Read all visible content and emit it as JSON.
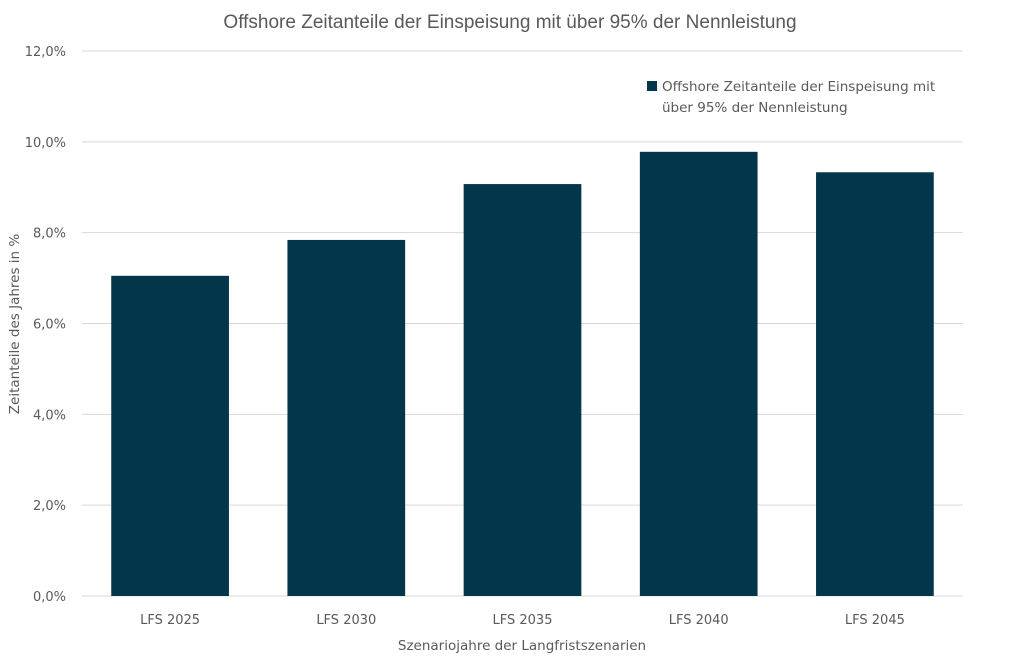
{
  "chart_data": {
    "type": "bar",
    "title": "Offshore Zeitanteile der Einspeisung mit über 95% der Nennleistung",
    "xlabel": "Szenariojahre der Langfristszenarien",
    "ylabel": "Zeitanteile des Jahres in %",
    "categories": [
      "LFS 2025",
      "LFS 2030",
      "LFS 2035",
      "LFS 2040",
      "LFS 2045"
    ],
    "series": [
      {
        "name": "Offshore Zeitanteile der Einspeisung mit über 95% der Nennleistung",
        "legend_lines": [
          "Offshore Zeitanteile der Einspeisung mit",
          "über 95% der Nennleistung"
        ],
        "values": [
          7.05,
          7.84,
          9.07,
          9.78,
          9.33
        ],
        "color": "#03364b"
      }
    ],
    "ylim": [
      0,
      12
    ],
    "yticks": [
      0,
      2,
      4,
      6,
      8,
      10,
      12
    ],
    "ytick_labels": [
      "0,0%",
      "2,0%",
      "4,0%",
      "6,0%",
      "8,0%",
      "10,0%",
      "12,0%"
    ],
    "grid": true,
    "legend_position": "top-right"
  }
}
